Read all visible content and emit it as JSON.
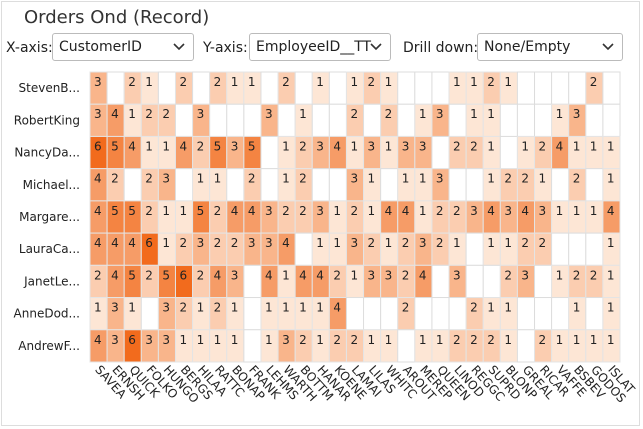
{
  "title": "Orders Ond (Record)",
  "controls": {
    "x_axis": {
      "label": "X-axis:",
      "value": "CustomerID"
    },
    "y_axis": {
      "label": "Y-axis:",
      "value": "EmployeeID__TT"
    },
    "drill_down": {
      "label": "Drill down:",
      "value": "None/Empty"
    }
  },
  "chart_data": {
    "type": "heatmap",
    "x_categories": [
      "SAVEA",
      "ERNSH",
      "QUICK",
      "FOLKO",
      "HUNGO",
      "BERGS",
      "HILAA",
      "RATTC",
      "BONAP",
      "FRANK",
      "LEHMS",
      "WARTH",
      "BOTTM",
      "HANAR",
      "KOENE",
      "LAMAI",
      "LILAS",
      "WHITC",
      "AROUT",
      "MEREP",
      "QUEEN",
      "LINOD",
      "REGGC",
      "SUPRD",
      "BLONP",
      "GREAL",
      "RICAR",
      "VAFFE",
      "BSBEV",
      "GODOS",
      "ISLAT"
    ],
    "y_categories": [
      "StevenB...",
      "RobertKing",
      "NancyDa...",
      "Michael...",
      "Margare...",
      "LauraCa...",
      "JanetLe...",
      "AnneDod...",
      "AndrewF..."
    ],
    "values": [
      [
        3,
        null,
        2,
        1,
        null,
        2,
        null,
        2,
        1,
        1,
        null,
        2,
        null,
        1,
        null,
        1,
        2,
        1,
        null,
        null,
        null,
        1,
        1,
        2,
        1,
        null,
        null,
        null,
        null,
        2,
        null
      ],
      [
        3,
        4,
        1,
        2,
        2,
        null,
        3,
        null,
        null,
        null,
        3,
        null,
        1,
        null,
        null,
        2,
        null,
        2,
        null,
        1,
        3,
        null,
        1,
        1,
        null,
        null,
        null,
        1,
        3,
        null,
        null
      ],
      [
        6,
        5,
        4,
        1,
        1,
        4,
        2,
        5,
        3,
        5,
        null,
        1,
        2,
        3,
        4,
        1,
        3,
        1,
        3,
        3,
        null,
        2,
        2,
        1,
        null,
        1,
        2,
        4,
        1,
        1,
        1
      ],
      [
        4,
        2,
        null,
        2,
        3,
        null,
        1,
        1,
        null,
        2,
        null,
        1,
        2,
        null,
        null,
        3,
        1,
        null,
        1,
        1,
        3,
        null,
        null,
        1,
        2,
        2,
        1,
        null,
        2,
        null,
        1
      ],
      [
        4,
        5,
        5,
        2,
        1,
        1,
        5,
        2,
        4,
        4,
        3,
        2,
        2,
        3,
        1,
        2,
        1,
        4,
        4,
        1,
        2,
        2,
        3,
        4,
        3,
        4,
        3,
        1,
        1,
        1,
        4
      ],
      [
        4,
        4,
        4,
        6,
        1,
        2,
        3,
        2,
        2,
        3,
        3,
        4,
        null,
        1,
        1,
        3,
        2,
        1,
        2,
        3,
        2,
        1,
        null,
        1,
        1,
        2,
        2,
        null,
        null,
        null,
        1
      ],
      [
        2,
        4,
        5,
        2,
        5,
        6,
        2,
        4,
        3,
        null,
        4,
        1,
        4,
        4,
        2,
        1,
        3,
        3,
        2,
        4,
        null,
        3,
        null,
        null,
        2,
        3,
        null,
        1,
        2,
        2,
        1
      ],
      [
        1,
        3,
        1,
        null,
        3,
        2,
        1,
        2,
        1,
        null,
        1,
        1,
        1,
        1,
        4,
        null,
        null,
        null,
        2,
        null,
        null,
        null,
        2,
        1,
        1,
        null,
        null,
        null,
        1,
        null,
        1
      ],
      [
        4,
        3,
        6,
        3,
        3,
        1,
        1,
        1,
        1,
        null,
        1,
        3,
        2,
        1,
        2,
        2,
        1,
        1,
        null,
        1,
        1,
        2,
        2,
        2,
        1,
        null,
        2,
        1,
        1,
        1,
        1
      ]
    ],
    "color_low": "#fde6d5",
    "color_high": "#f26b1d"
  }
}
